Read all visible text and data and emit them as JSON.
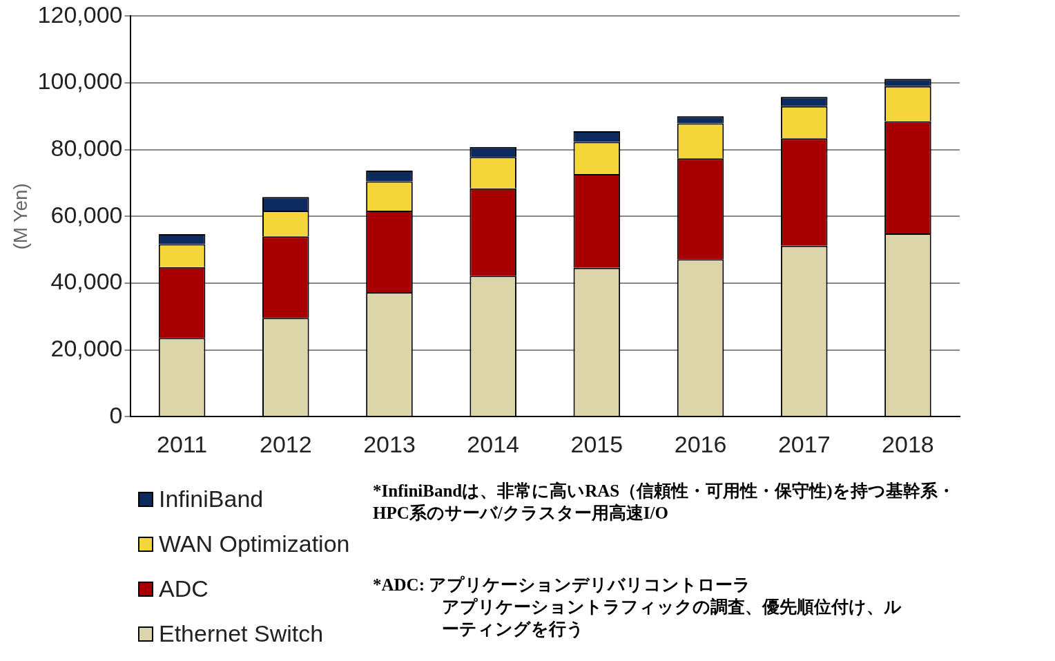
{
  "chart_data": {
    "type": "bar",
    "stacked": true,
    "ylabel": "(M Yen)",
    "categories": [
      "2011",
      "2012",
      "2013",
      "2014",
      "2015",
      "2016",
      "2017",
      "2018"
    ],
    "series": [
      {
        "name": "Ethernet Switch",
        "color": "#ddd5aa",
        "values": [
          23600,
          29600,
          37300,
          42200,
          44600,
          47200,
          51200,
          54900
        ]
      },
      {
        "name": "ADC",
        "color": "#a80000",
        "values": [
          21200,
          24400,
          24400,
          26200,
          28100,
          30200,
          32200,
          33600
        ]
      },
      {
        "name": "WAN Optimization",
        "color": "#f5d63a",
        "values": [
          6900,
          7700,
          8800,
          9400,
          9600,
          10500,
          9600,
          10500
        ]
      },
      {
        "name": "InfiniBand",
        "color": "#0d2a5e",
        "values": [
          3000,
          4100,
          3200,
          3000,
          3200,
          2100,
          2800,
          2200
        ]
      }
    ],
    "ylim": [
      0,
      120000
    ],
    "yticks": [
      0,
      {
        "value": 20000,
        "label": "20,000"
      },
      {
        "value": 40000,
        "label": "40,000"
      },
      {
        "value": 60000,
        "label": "60,000"
      },
      {
        "value": 80000,
        "label": "80,000"
      },
      {
        "value": 100000,
        "label": "100,000"
      },
      {
        "value": 120000,
        "label": "120,000"
      }
    ],
    "grid": "y",
    "legend": "bottom left",
    "annotations": [
      "*InfiniBandは、非常に高いRAS（信頼性・可用性・保守性)を持つ基幹系・\nHPC系のサーバ/クラスター用高速I/O",
      "*ADC: アプリケーションデリバリコントローラ",
      "アプリケーショントラフィックの調査、優先順位付け、ルーティングを行う"
    ]
  }
}
